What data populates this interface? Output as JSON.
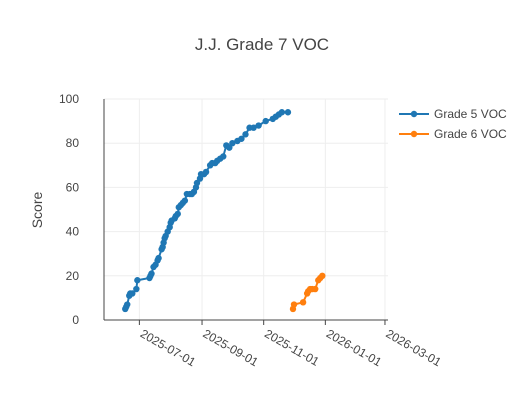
{
  "chart_data": {
    "type": "line",
    "title": "J.J. Grade 7 VOC",
    "xlabel": "",
    "ylabel": "Score",
    "x_axis": {
      "type": "date",
      "range": [
        "2025-05-27",
        "2026-03-04"
      ],
      "ticks": [
        "2025-07-01",
        "2025-09-01",
        "2025-11-01",
        "2026-01-01",
        "2026-03-01"
      ]
    },
    "y_axis": {
      "range": [
        0,
        100
      ],
      "ticks": [
        0,
        20,
        40,
        60,
        80,
        100
      ]
    },
    "grid": true,
    "legend": "top-right",
    "series": [
      {
        "name": "Grade 5 VOC",
        "color": "#1f77b4",
        "points": [
          [
            "2025-06-17",
            5
          ],
          [
            "2025-06-18",
            6
          ],
          [
            "2025-06-19",
            7
          ],
          [
            "2025-06-21",
            11
          ],
          [
            "2025-06-22",
            12
          ],
          [
            "2025-06-24",
            12
          ],
          [
            "2025-06-28",
            14
          ],
          [
            "2025-06-29",
            18
          ],
          [
            "2025-07-11",
            19
          ],
          [
            "2025-07-12",
            20
          ],
          [
            "2025-07-13",
            21
          ],
          [
            "2025-07-15",
            24
          ],
          [
            "2025-07-17",
            25
          ],
          [
            "2025-07-19",
            27
          ],
          [
            "2025-07-20",
            28
          ],
          [
            "2025-07-23",
            32
          ],
          [
            "2025-07-24",
            33
          ],
          [
            "2025-07-25",
            35
          ],
          [
            "2025-07-26",
            37
          ],
          [
            "2025-07-27",
            38
          ],
          [
            "2025-07-29",
            40
          ],
          [
            "2025-07-31",
            42
          ],
          [
            "2025-08-01",
            44
          ],
          [
            "2025-08-02",
            45
          ],
          [
            "2025-08-05",
            46
          ],
          [
            "2025-08-06",
            47
          ],
          [
            "2025-08-08",
            48
          ],
          [
            "2025-08-09",
            51
          ],
          [
            "2025-08-11",
            52
          ],
          [
            "2025-08-13",
            53
          ],
          [
            "2025-08-15",
            54
          ],
          [
            "2025-08-17",
            57
          ],
          [
            "2025-08-20",
            57
          ],
          [
            "2025-08-22",
            57
          ],
          [
            "2025-08-24",
            58
          ],
          [
            "2025-08-26",
            60
          ],
          [
            "2025-08-27",
            62
          ],
          [
            "2025-08-30",
            64
          ],
          [
            "2025-08-31",
            66
          ],
          [
            "2025-09-03",
            66
          ],
          [
            "2025-09-05",
            67
          ],
          [
            "2025-09-09",
            70
          ],
          [
            "2025-09-11",
            71
          ],
          [
            "2025-09-14",
            71
          ],
          [
            "2025-09-16",
            72
          ],
          [
            "2025-09-19",
            73
          ],
          [
            "2025-09-22",
            74
          ],
          [
            "2025-09-25",
            79
          ],
          [
            "2025-09-28",
            78
          ],
          [
            "2025-10-01",
            80
          ],
          [
            "2025-10-06",
            81
          ],
          [
            "2025-10-10",
            82
          ],
          [
            "2025-10-14",
            84
          ],
          [
            "2025-10-18",
            87
          ],
          [
            "2025-10-22",
            87
          ],
          [
            "2025-10-27",
            88
          ],
          [
            "2025-11-03",
            90
          ],
          [
            "2025-11-10",
            91
          ],
          [
            "2025-11-13",
            92
          ],
          [
            "2025-11-16",
            93
          ],
          [
            "2025-11-19",
            94
          ],
          [
            "2025-11-25",
            94
          ]
        ]
      },
      {
        "name": "Grade 6 VOC",
        "color": "#ff7f0e",
        "points": [
          [
            "2025-11-30",
            5
          ],
          [
            "2025-12-01",
            7
          ],
          [
            "2025-12-10",
            8
          ],
          [
            "2025-12-14",
            12
          ],
          [
            "2025-12-15",
            13
          ],
          [
            "2025-12-17",
            14
          ],
          [
            "2025-12-19",
            14
          ],
          [
            "2025-12-22",
            14
          ],
          [
            "2025-12-25",
            18
          ],
          [
            "2025-12-27",
            19
          ],
          [
            "2025-12-29",
            20
          ]
        ]
      }
    ]
  }
}
